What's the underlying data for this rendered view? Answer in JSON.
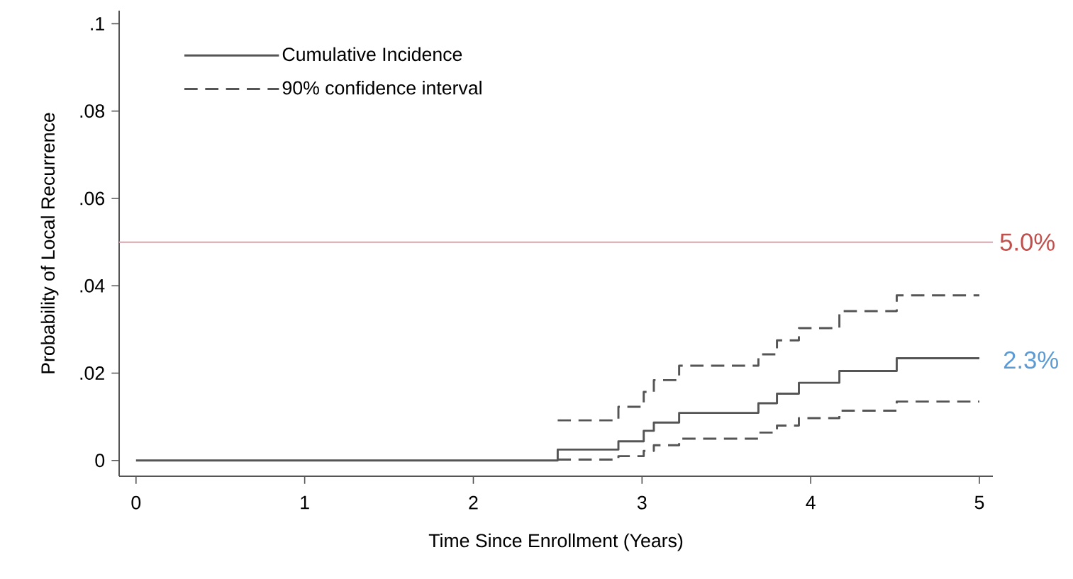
{
  "chart_data": {
    "type": "step",
    "xlabel": "Time Since Enrollment (Years)",
    "ylabel": "Probability of Local Recurrence",
    "xlim": [
      -0.1,
      5.08
    ],
    "ylim": [
      -0.0036,
      0.103
    ],
    "xticks": [
      0,
      1,
      2,
      3,
      4,
      5
    ],
    "yticks": [
      {
        "value": 0,
        "label": "0"
      },
      {
        "value": 0.02,
        "label": ".02"
      },
      {
        "value": 0.04,
        "label": ".04"
      },
      {
        "value": 0.06,
        "label": ".06"
      },
      {
        "value": 0.08,
        "label": ".08"
      },
      {
        "value": 0.1,
        "label": ".1"
      }
    ],
    "grid": false,
    "legend": "top left",
    "series": [
      {
        "name": "Cumulative Incidence",
        "color": "#555555",
        "line_style": "solid",
        "x": [
          0,
          2.5,
          2.86,
          3.01,
          3.07,
          3.22,
          3.69,
          3.8,
          3.93,
          4.17,
          4.51,
          5
        ],
        "values": [
          0,
          0.0025,
          0.0044,
          0.0068,
          0.0087,
          0.0109,
          0.0131,
          0.0153,
          0.0178,
          0.0205,
          0.0234,
          0.0234
        ]
      },
      {
        "name": "90% confidence interval",
        "color": "#555555",
        "line_style": "dashed",
        "x": [
          2.5,
          2.86,
          3.01,
          3.07,
          3.22,
          3.69,
          3.8,
          3.93,
          4.17,
          4.51,
          5
        ],
        "values": [
          0.0092,
          0.0123,
          0.0157,
          0.0184,
          0.0217,
          0.0243,
          0.0275,
          0.0303,
          0.0342,
          0.0378,
          0.0378
        ]
      },
      {
        "color": "#555555",
        "line_style": "dashed",
        "x": [
          2.5,
          2.86,
          3.01,
          3.07,
          3.22,
          3.69,
          3.8,
          3.93,
          4.17,
          4.51,
          5
        ],
        "values": [
          0.0002,
          0.001,
          0.0022,
          0.0035,
          0.005,
          0.0064,
          0.008,
          0.0097,
          0.0114,
          0.0135,
          0.0135
        ]
      }
    ],
    "ref_lines": [
      {
        "axis": "y",
        "value": 0.05,
        "label": "5.0%",
        "color": "#d9a3ab"
      }
    ],
    "annotations": [
      {
        "text": "2.3%",
        "x": 5,
        "y": 0.023
      }
    ]
  }
}
